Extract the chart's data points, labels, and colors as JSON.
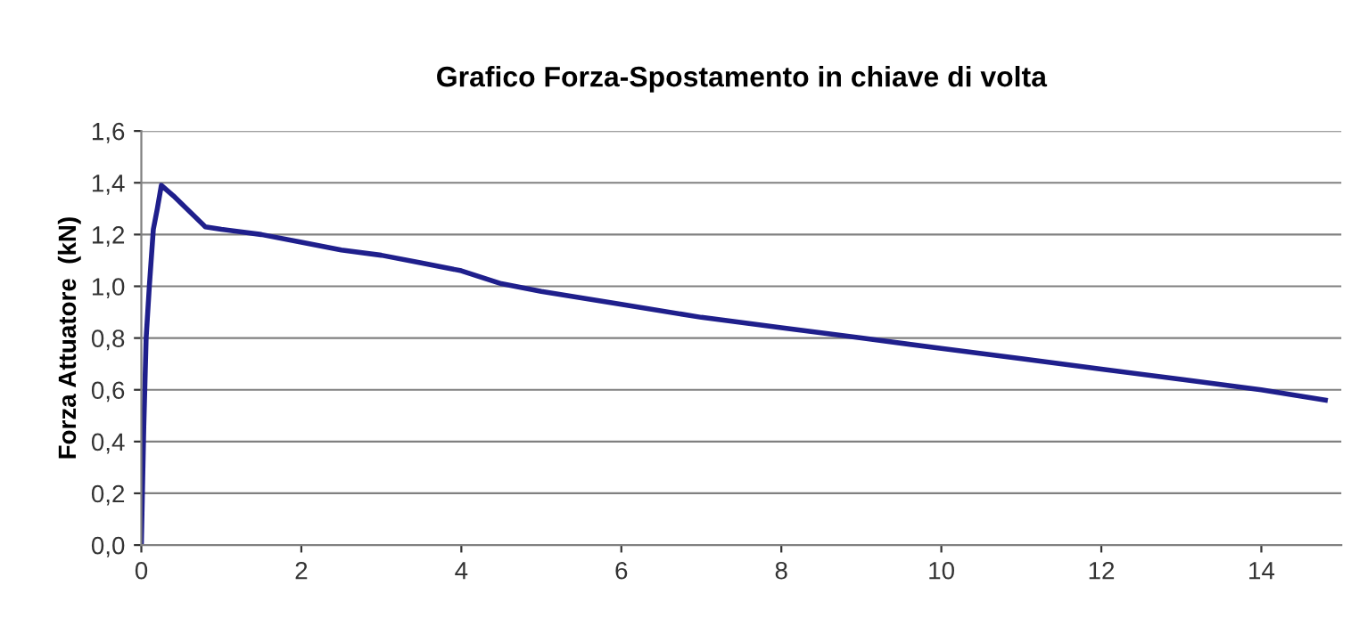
{
  "chart_data": {
    "type": "line",
    "title": "Grafico Forza-Spostamento in chiave di volta",
    "ylabel": "Forza Attuatore  (kN)",
    "x": [
      0,
      0.03,
      0.06,
      0.1,
      0.15,
      0.2,
      0.25,
      0.4,
      0.6,
      0.8,
      1,
      1.5,
      2,
      2.5,
      3,
      3.5,
      4,
      4.5,
      5,
      6,
      7,
      8,
      9,
      10,
      11,
      12,
      13,
      14,
      14.8
    ],
    "series": [
      {
        "color": "#1f1f8c",
        "values": [
          0,
          0.45,
          0.8,
          1.0,
          1.22,
          1.3,
          1.39,
          1.35,
          1.29,
          1.23,
          1.22,
          1.2,
          1.17,
          1.14,
          1.12,
          1.09,
          1.06,
          1.01,
          0.98,
          0.93,
          0.88,
          0.84,
          0.8,
          0.76,
          0.72,
          0.68,
          0.64,
          0.6,
          0.56
        ]
      }
    ],
    "xlim": [
      0,
      15
    ],
    "xticks": [
      0,
      2,
      4,
      6,
      8,
      10,
      12,
      14
    ],
    "ylim": [
      0,
      1.6
    ],
    "yticks": [
      {
        "value": 0,
        "label": "0,0"
      },
      {
        "value": 0.2,
        "label": "0,2"
      },
      {
        "value": 0.4,
        "label": "0,4"
      },
      {
        "value": 0.6,
        "label": "0,6"
      },
      {
        "value": 0.8,
        "label": "0,8"
      },
      {
        "value": 1.0,
        "label": "1,0"
      },
      {
        "value": 1.2,
        "label": "1,2"
      },
      {
        "value": 1.4,
        "label": "1,4"
      },
      {
        "value": 1.6,
        "label": "1,6"
      }
    ],
    "grid": "y",
    "marker": "none",
    "line_style": "solid",
    "legend": false
  }
}
